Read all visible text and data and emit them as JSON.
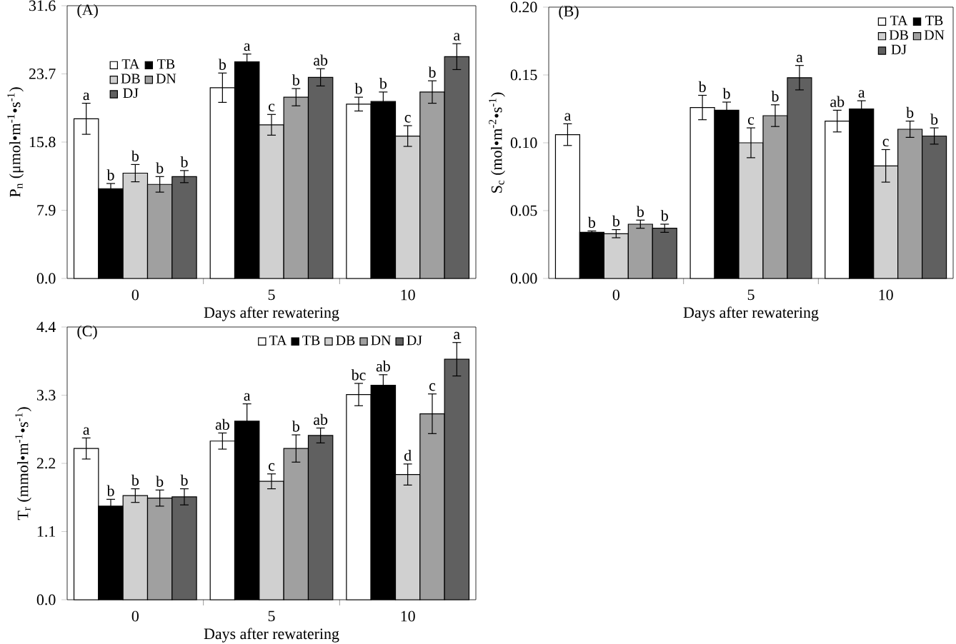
{
  "chart_data": [
    {
      "type": "bar",
      "title": "(A)",
      "xlabel": "Days after rewatering",
      "ylabel": "P$_{n}$ (μmol•m$^{-1}$•s$^{-1}$)",
      "categories": [
        "0",
        "5",
        "10"
      ],
      "ylim": [
        0,
        31.6
      ],
      "yticks": [
        {
          "value": 0,
          "label": "0.0"
        },
        7.9,
        15.8,
        23.7,
        31.6
      ],
      "legend": "top left",
      "series": [
        {
          "name": "TA",
          "color": "#ffffff",
          "values": [
            18.5,
            22.1,
            20.2
          ],
          "errors": [
            1.8,
            1.7,
            0.8
          ],
          "value_labels": [
            "a",
            "b",
            "b"
          ]
        },
        {
          "name": "TB",
          "color": "#000000",
          "values": [
            10.4,
            25.1,
            20.5
          ],
          "errors": [
            0.6,
            0.9,
            1.1
          ],
          "value_labels": [
            "b",
            "a",
            "b"
          ]
        },
        {
          "name": "DB",
          "color": "#d0d0d0",
          "values": [
            12.2,
            17.8,
            16.5
          ],
          "errors": [
            1.0,
            1.2,
            1.2
          ],
          "value_labels": [
            "b",
            "c",
            "c"
          ]
        },
        {
          "name": "DN",
          "color": "#a0a0a0",
          "values": [
            10.9,
            21.0,
            21.6
          ],
          "errors": [
            0.9,
            1.0,
            1.3
          ],
          "value_labels": [
            "b",
            "b",
            "b"
          ]
        },
        {
          "name": "DJ",
          "color": "#606060",
          "values": [
            11.8,
            23.3,
            25.7
          ],
          "errors": [
            0.7,
            1.0,
            1.5
          ],
          "value_labels": [
            "b",
            "ab",
            "a"
          ]
        }
      ]
    },
    {
      "type": "bar",
      "title": "(B)",
      "xlabel": "Days after rewatering",
      "ylabel": "S$_{c}$ (mol•m$^{-2}$•s$^{-1}$)",
      "categories": [
        "0",
        "5",
        "10"
      ],
      "ylim": [
        0,
        0.2
      ],
      "yticks": [
        {
          "value": 0,
          "label": "0.00"
        },
        0.05,
        {
          "value": 0.1,
          "label": "0.10"
        },
        0.15,
        {
          "value": 0.2,
          "label": "0.20"
        }
      ],
      "legend": "top right",
      "series": [
        {
          "name": "TA",
          "color": "#ffffff",
          "values": [
            0.106,
            0.126,
            0.116
          ],
          "errors": [
            0.008,
            0.009,
            0.008
          ],
          "value_labels": [
            "a",
            "b",
            "ab"
          ]
        },
        {
          "name": "TB",
          "color": "#000000",
          "values": [
            0.034,
            0.124,
            0.125
          ],
          "errors": [
            0.001,
            0.006,
            0.006
          ],
          "value_labels": [
            "b",
            "b",
            "a"
          ]
        },
        {
          "name": "DB",
          "color": "#d0d0d0",
          "values": [
            0.033,
            0.1,
            0.083
          ],
          "errors": [
            0.003,
            0.011,
            0.012
          ],
          "value_labels": [
            "b",
            "c",
            "c"
          ]
        },
        {
          "name": "DN",
          "color": "#a0a0a0",
          "values": [
            0.04,
            0.12,
            0.11
          ],
          "errors": [
            0.003,
            0.008,
            0.006
          ],
          "value_labels": [
            "b",
            "b",
            "b"
          ]
        },
        {
          "name": "DJ",
          "color": "#606060",
          "values": [
            0.037,
            0.148,
            0.105
          ],
          "errors": [
            0.003,
            0.009,
            0.006
          ],
          "value_labels": [
            "b",
            "a",
            "b"
          ]
        }
      ]
    },
    {
      "type": "bar",
      "title": "(C)",
      "xlabel": "Days after rewatering",
      "ylabel": "T$_{r}$ (mmol•m$^{-1}$•s$^{-1}$)",
      "categories": [
        "0",
        "5",
        "10"
      ],
      "ylim": [
        0,
        4.4
      ],
      "yticks": [
        {
          "value": 0,
          "label": "0.0"
        },
        1.1,
        2.2,
        3.3,
        4.4
      ],
      "legend": "top right",
      "series": [
        {
          "name": "TA",
          "color": "#ffffff",
          "values": [
            2.44,
            2.56,
            3.31
          ],
          "errors": [
            0.17,
            0.13,
            0.18
          ],
          "value_labels": [
            "a",
            "ab",
            "bc"
          ]
        },
        {
          "name": "TB",
          "color": "#000000",
          "values": [
            1.51,
            2.88,
            3.46
          ],
          "errors": [
            0.11,
            0.28,
            0.17
          ],
          "value_labels": [
            "b",
            "a",
            "ab"
          ]
        },
        {
          "name": "DB",
          "color": "#d0d0d0",
          "values": [
            1.68,
            1.91,
            2.02
          ],
          "errors": [
            0.11,
            0.12,
            0.17
          ],
          "value_labels": [
            "b",
            "c",
            "d"
          ]
        },
        {
          "name": "DN",
          "color": "#a0a0a0",
          "values": [
            1.64,
            2.44,
            3.0
          ],
          "errors": [
            0.13,
            0.22,
            0.32
          ],
          "value_labels": [
            "b",
            "b",
            "c"
          ]
        },
        {
          "name": "DJ",
          "color": "#606060",
          "values": [
            1.66,
            2.65,
            3.88
          ],
          "errors": [
            0.13,
            0.12,
            0.27
          ],
          "value_labels": [
            "b",
            "ab",
            "a"
          ]
        }
      ]
    }
  ]
}
